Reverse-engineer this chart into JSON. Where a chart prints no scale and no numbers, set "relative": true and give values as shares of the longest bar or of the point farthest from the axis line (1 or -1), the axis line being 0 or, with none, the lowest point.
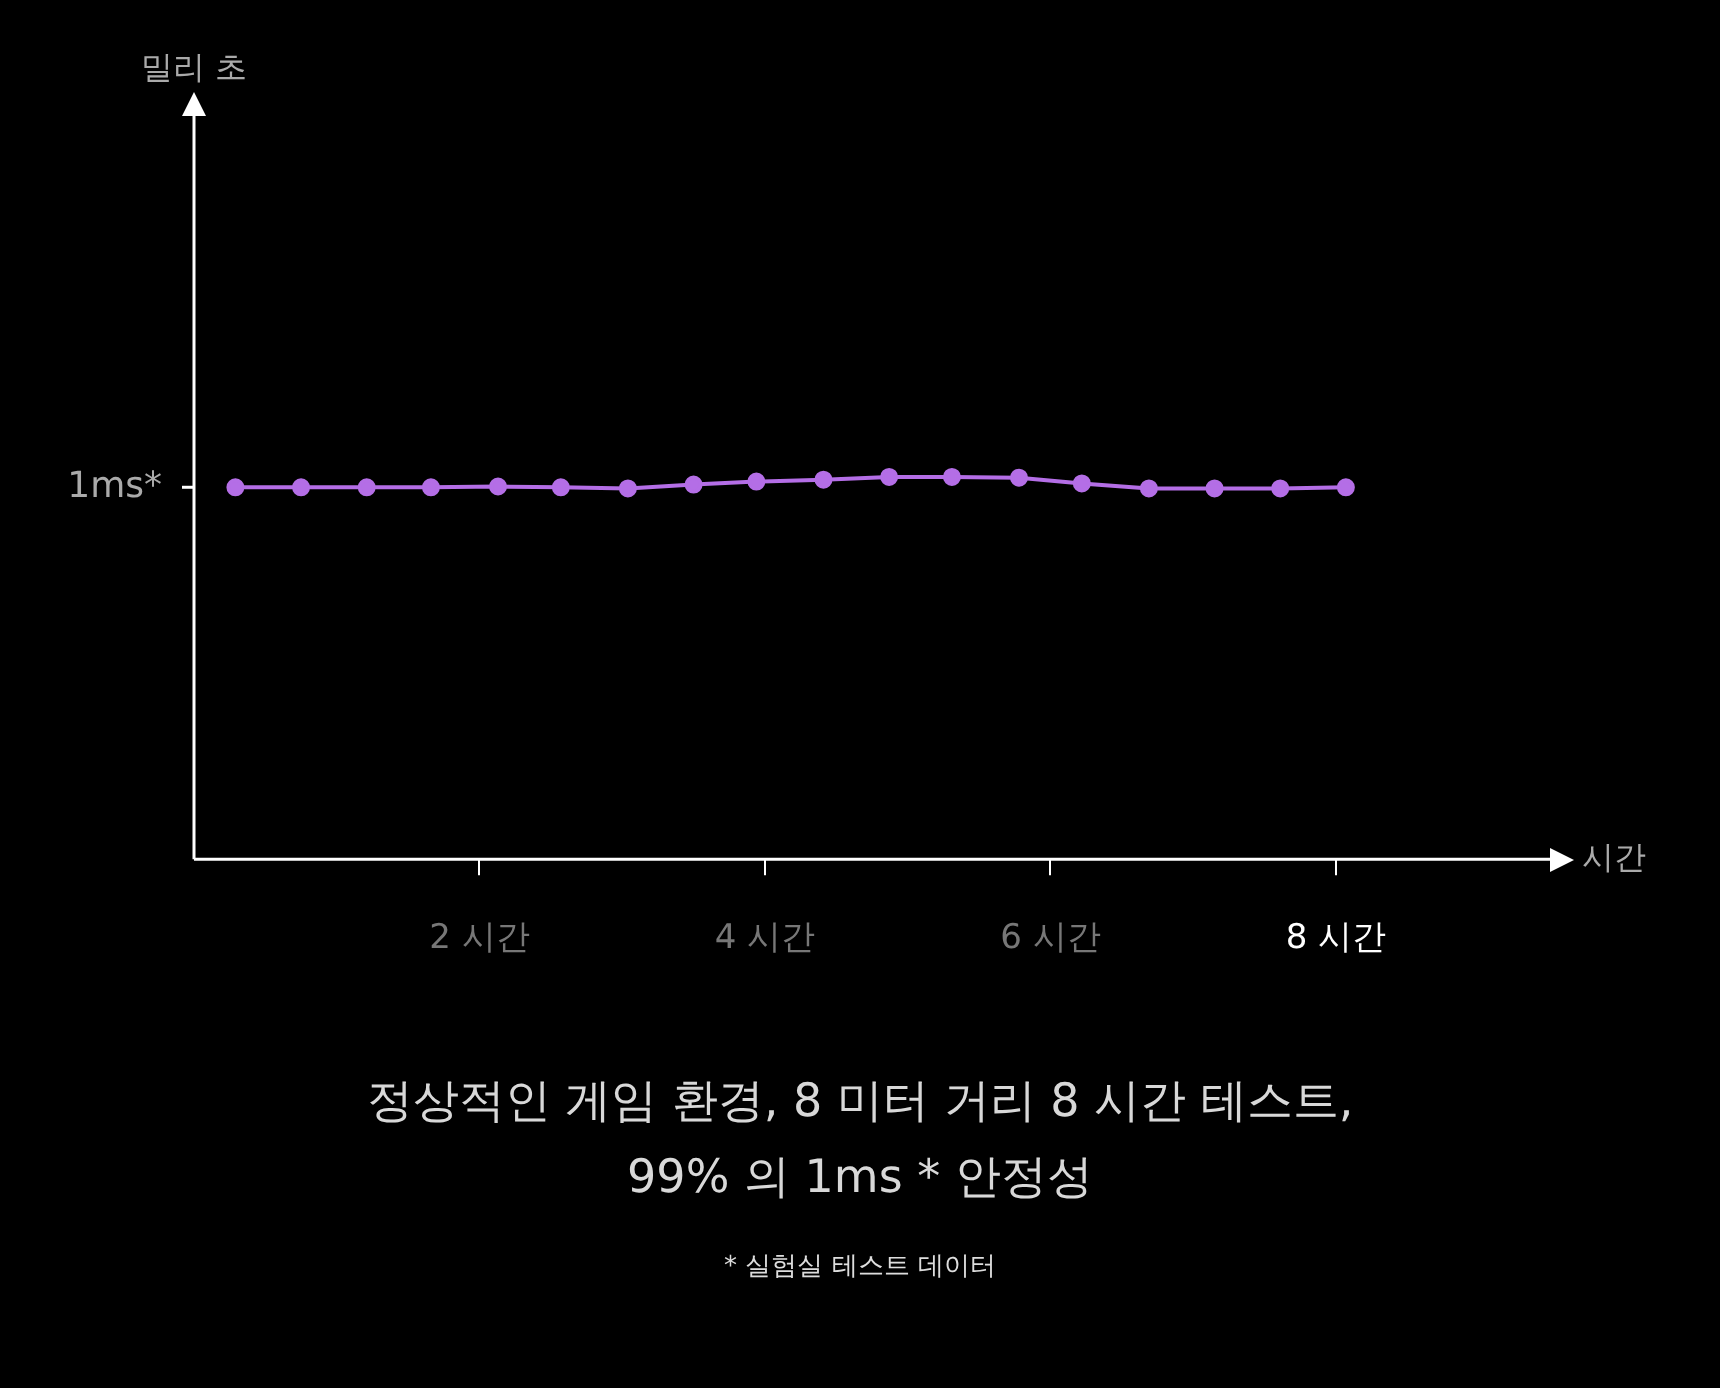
{
  "chart_data": {
    "type": "line",
    "relative": true,
    "title": "정상적인 게임 환경, 8 미터 거리 8 시간 테스트,\n99% 의 1ms * 안정성",
    "xlabel": "시간",
    "x": [
      0.29,
      0.75,
      1.21,
      1.66,
      2.13,
      2.57,
      3.04,
      3.5,
      3.94,
      4.41,
      4.87,
      5.31,
      5.78,
      6.22,
      6.69,
      7.15,
      7.61,
      8.07
    ],
    "xlim": [
      0,
      9.5
    ],
    "xticks": [
      {
        "value": 2,
        "label": "2 시간"
      },
      {
        "value": 4,
        "label": "4 시간"
      },
      {
        "value": 6,
        "label": "6 시간"
      },
      {
        "value": 8,
        "label": "8 시간"
      }
    ],
    "series": [
      {
        "color": "#b46ee6",
        "values": [
          0.973,
          0.973,
          0.973,
          0.973,
          0.975,
          0.973,
          0.97,
          0.98,
          0.988,
          0.993,
          1,
          1,
          0.998,
          0.983,
          0.97,
          0.97,
          0.97,
          0.973
        ]
      }
    ],
    "annotations": [
      "1ms*",
      "밀리 초",
      "* 실험실 테스트 데이터"
    ],
    "marker": "circle",
    "line_style": "solid",
    "grid": false,
    "legend": false
  }
}
